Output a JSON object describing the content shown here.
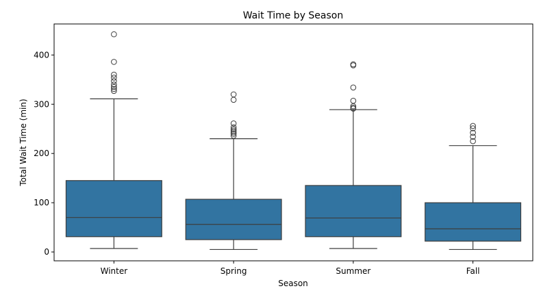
{
  "chart_data": {
    "type": "box",
    "title": "Wait Time by Season",
    "xlabel": "Season",
    "ylabel": "Total Wait Time (min)",
    "ylim": [
      -18,
      463
    ],
    "yticks": [
      0,
      100,
      200,
      300,
      400
    ],
    "grid": false,
    "legend": "none",
    "box_color": "#3274a1",
    "line_color": "#3d3d3d",
    "categories": [
      "Winter",
      "Spring",
      "Summer",
      "Fall"
    ],
    "boxes": [
      {
        "category": "Winter",
        "whisker_low": 7,
        "q1": 31,
        "median": 70,
        "q3": 145,
        "whisker_high": 311,
        "outliers": [
          442,
          386,
          360,
          354,
          347,
          340,
          335,
          331,
          327
        ]
      },
      {
        "category": "Spring",
        "whisker_low": 5,
        "q1": 25,
        "median": 56,
        "q3": 107,
        "whisker_high": 230,
        "outliers": [
          320,
          309,
          261,
          253,
          249,
          246,
          243,
          240,
          236
        ]
      },
      {
        "category": "Summer",
        "whisker_low": 7,
        "q1": 31,
        "median": 69,
        "q3": 135,
        "whisker_high": 289,
        "outliers": [
          381,
          379,
          334,
          307,
          296,
          293,
          291
        ]
      },
      {
        "category": "Fall",
        "whisker_low": 5,
        "q1": 22,
        "median": 47,
        "q3": 100,
        "whisker_high": 216,
        "outliers": [
          256,
          251,
          242,
          234,
          225
        ]
      }
    ]
  }
}
